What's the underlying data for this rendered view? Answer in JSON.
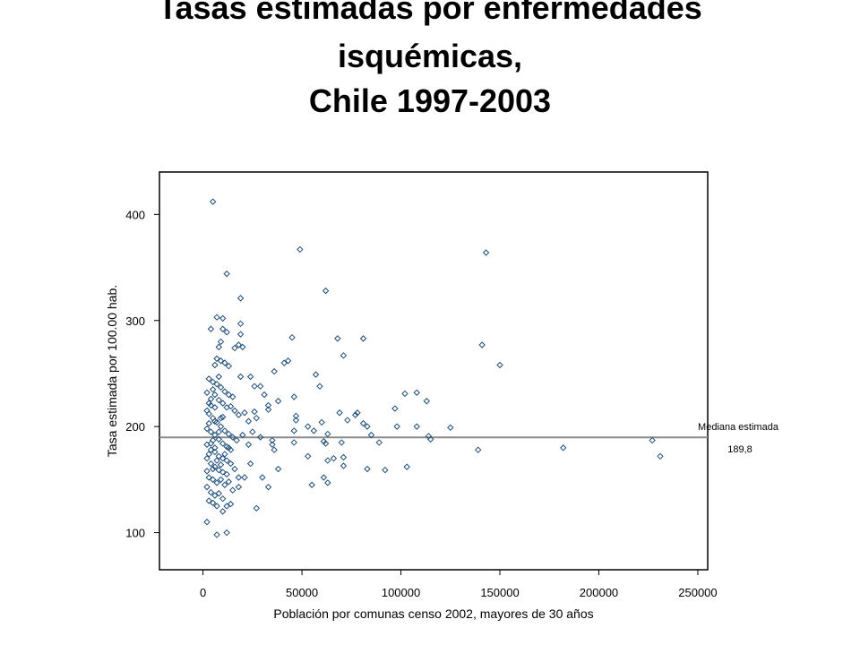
{
  "title_line1": "Tasas estimadas por enfermedades",
  "title_line2": "isquémicas,",
  "title_line3": "Chile 1997-2003",
  "chart_data": {
    "type": "scatter",
    "xlabel": "Población por comunas censo 2002, mayores de 30 años",
    "ylabel": "Tasa estimada por 100.00 hab.",
    "xlim": [
      -22000,
      255000
    ],
    "ylim": [
      65,
      440
    ],
    "xticks": [
      0,
      50000,
      100000,
      150000,
      200000,
      250000
    ],
    "yticks": [
      100,
      200,
      300,
      400
    ],
    "grid": false,
    "marker_color": "#1f4e79",
    "median_line": {
      "label": "Mediana estimada",
      "value_label": "189,8",
      "value": 189.8,
      "color": "#8a8a8a"
    },
    "points": [
      [
        5000,
        412
      ],
      [
        49000,
        367
      ],
      [
        143000,
        364
      ],
      [
        12000,
        344
      ],
      [
        62000,
        328
      ],
      [
        19000,
        321
      ],
      [
        7000,
        303
      ],
      [
        10000,
        302
      ],
      [
        19000,
        297
      ],
      [
        4000,
        292
      ],
      [
        10000,
        292
      ],
      [
        12000,
        289
      ],
      [
        19000,
        287
      ],
      [
        45000,
        284
      ],
      [
        68000,
        283
      ],
      [
        81000,
        283
      ],
      [
        141000,
        277
      ],
      [
        9000,
        280
      ],
      [
        8000,
        275
      ],
      [
        18000,
        277
      ],
      [
        20000,
        275
      ],
      [
        7000,
        264
      ],
      [
        9000,
        262
      ],
      [
        11000,
        260
      ],
      [
        13000,
        257
      ],
      [
        6000,
        258
      ],
      [
        16000,
        274
      ],
      [
        71000,
        267
      ],
      [
        150000,
        258
      ],
      [
        43000,
        262
      ],
      [
        41000,
        260
      ],
      [
        36000,
        252
      ],
      [
        57000,
        249
      ],
      [
        24000,
        247
      ],
      [
        19000,
        247
      ],
      [
        3000,
        245
      ],
      [
        5000,
        242
      ],
      [
        7000,
        240
      ],
      [
        9000,
        237
      ],
      [
        11000,
        233
      ],
      [
        13000,
        230
      ],
      [
        15000,
        228
      ],
      [
        29000,
        238
      ],
      [
        26000,
        238
      ],
      [
        31000,
        230
      ],
      [
        33000,
        220
      ],
      [
        46000,
        228
      ],
      [
        59000,
        238
      ],
      [
        102000,
        231
      ],
      [
        108000,
        232
      ],
      [
        113000,
        224
      ],
      [
        97000,
        217
      ],
      [
        38000,
        224
      ],
      [
        2000,
        232
      ],
      [
        4000,
        226
      ],
      [
        6000,
        230
      ],
      [
        8000,
        225
      ],
      [
        10000,
        222
      ],
      [
        12000,
        218
      ],
      [
        14000,
        219
      ],
      [
        16000,
        215
      ],
      [
        18000,
        211
      ],
      [
        21000,
        213
      ],
      [
        26000,
        214
      ],
      [
        33000,
        216
      ],
      [
        27000,
        208
      ],
      [
        23000,
        205
      ],
      [
        47000,
        210
      ],
      [
        47000,
        206
      ],
      [
        60000,
        204
      ],
      [
        69000,
        213
      ],
      [
        73000,
        206
      ],
      [
        77000,
        211
      ],
      [
        78000,
        213
      ],
      [
        81000,
        203
      ],
      [
        83000,
        200
      ],
      [
        85000,
        192
      ],
      [
        98000,
        200
      ],
      [
        108000,
        200
      ],
      [
        125000,
        199
      ],
      [
        2000,
        215
      ],
      [
        3000,
        212
      ],
      [
        5000,
        208
      ],
      [
        7000,
        204
      ],
      [
        9000,
        200
      ],
      [
        11000,
        196
      ],
      [
        13000,
        193
      ],
      [
        15000,
        190
      ],
      [
        17000,
        187
      ],
      [
        3000,
        203
      ],
      [
        2000,
        198
      ],
      [
        4000,
        195
      ],
      [
        6000,
        192
      ],
      [
        8000,
        188
      ],
      [
        10000,
        184
      ],
      [
        12000,
        181
      ],
      [
        14000,
        178
      ],
      [
        20000,
        192
      ],
      [
        25000,
        195
      ],
      [
        29000,
        190
      ],
      [
        35000,
        187
      ],
      [
        35000,
        183
      ],
      [
        46000,
        196
      ],
      [
        53000,
        200
      ],
      [
        56000,
        196
      ],
      [
        61000,
        186
      ],
      [
        63000,
        193
      ],
      [
        62000,
        184
      ],
      [
        70000,
        185
      ],
      [
        89000,
        185
      ],
      [
        115000,
        188
      ],
      [
        114000,
        191
      ],
      [
        182000,
        180
      ],
      [
        139000,
        178
      ],
      [
        227000,
        187
      ],
      [
        2000,
        183
      ],
      [
        4000,
        178
      ],
      [
        6000,
        176
      ],
      [
        8000,
        172
      ],
      [
        10000,
        170
      ],
      [
        12000,
        168
      ],
      [
        14000,
        165
      ],
      [
        2000,
        170
      ],
      [
        4000,
        165
      ],
      [
        6000,
        162
      ],
      [
        8000,
        159
      ],
      [
        10000,
        157
      ],
      [
        12000,
        155
      ],
      [
        16000,
        160
      ],
      [
        18000,
        152
      ],
      [
        24000,
        165
      ],
      [
        23000,
        183
      ],
      [
        36000,
        178
      ],
      [
        46000,
        185
      ],
      [
        53000,
        172
      ],
      [
        63000,
        168
      ],
      [
        66000,
        170
      ],
      [
        71000,
        171
      ],
      [
        71000,
        163
      ],
      [
        83000,
        160
      ],
      [
        92000,
        159
      ],
      [
        103000,
        162
      ],
      [
        231000,
        172
      ],
      [
        2000,
        158
      ],
      [
        3000,
        152
      ],
      [
        5000,
        150
      ],
      [
        7000,
        147
      ],
      [
        9000,
        150
      ],
      [
        11000,
        145
      ],
      [
        13000,
        148
      ],
      [
        15000,
        140
      ],
      [
        4000,
        138
      ],
      [
        6000,
        135
      ],
      [
        8000,
        137
      ],
      [
        10000,
        132
      ],
      [
        2000,
        143
      ],
      [
        3000,
        130
      ],
      [
        5000,
        128
      ],
      [
        7000,
        125
      ],
      [
        18000,
        143
      ],
      [
        33000,
        143
      ],
      [
        38000,
        160
      ],
      [
        55000,
        145
      ],
      [
        61000,
        152
      ],
      [
        63000,
        147
      ],
      [
        27000,
        123
      ],
      [
        12000,
        125
      ],
      [
        10000,
        120
      ],
      [
        14000,
        127
      ],
      [
        2000,
        110
      ],
      [
        7000,
        98
      ],
      [
        12000,
        100
      ],
      [
        30000,
        152
      ],
      [
        21000,
        152
      ],
      [
        5000,
        187
      ],
      [
        4000,
        184
      ],
      [
        6000,
        180
      ],
      [
        3000,
        174
      ],
      [
        7000,
        168
      ],
      [
        5000,
        160
      ],
      [
        9000,
        164
      ],
      [
        11000,
        174
      ],
      [
        13000,
        180
      ],
      [
        8000,
        195
      ],
      [
        10000,
        209
      ],
      [
        6000,
        218
      ],
      [
        4000,
        220
      ],
      [
        8000,
        247
      ],
      [
        5000,
        235
      ],
      [
        3000,
        222
      ],
      [
        6000,
        205
      ],
      [
        9000,
        208
      ]
    ]
  }
}
